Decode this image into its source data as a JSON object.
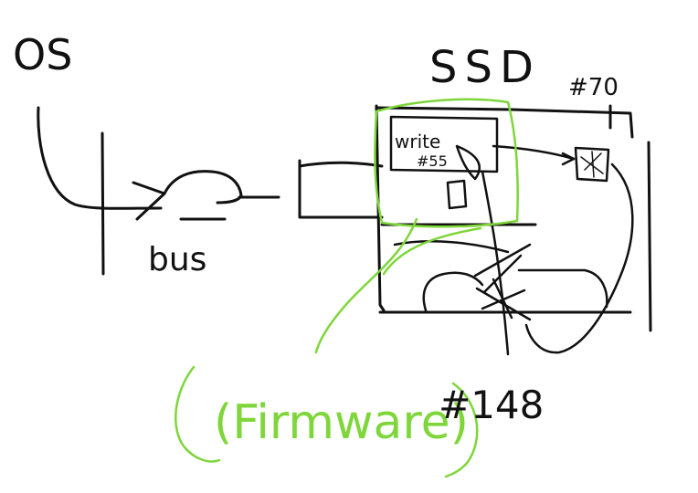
{
  "colors": {
    "background": "#ffffff",
    "ink": "#111111",
    "highlight": "#7ed63a"
  },
  "labels": {
    "os": "OS",
    "bus": "bus",
    "ssd": "SSD",
    "ssd_note": "#70",
    "write_note": "write",
    "write_note_sub": "#55",
    "firmware": "(Firmware)",
    "firmware_note": "#148"
  }
}
